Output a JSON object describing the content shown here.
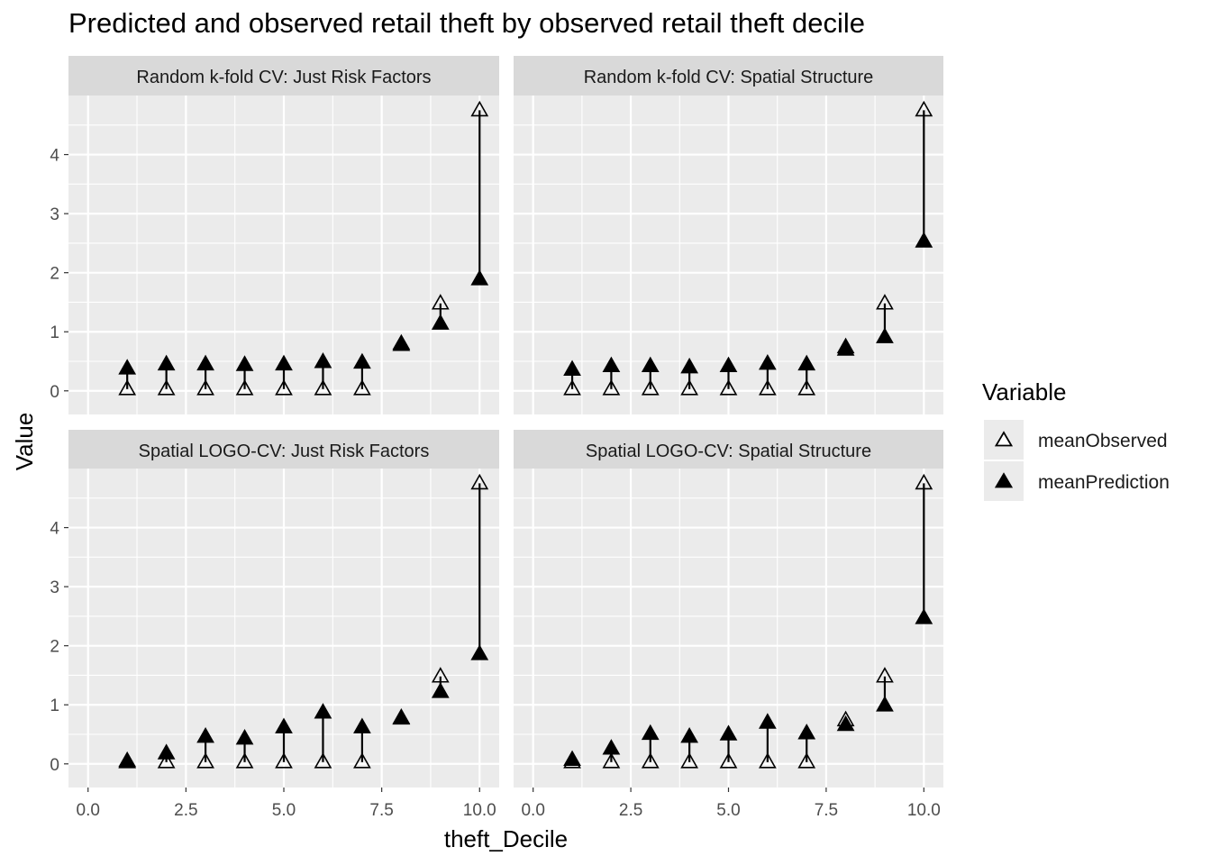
{
  "chart_data": {
    "type": "scatter",
    "title": "Predicted and observed retail theft by observed retail theft decile",
    "xlabel": "theft_Decile",
    "ylabel": "Value",
    "xlim": [
      -0.5,
      10.5
    ],
    "ylim": [
      -0.4,
      5.0
    ],
    "xticks": [
      0,
      2.5,
      5,
      7.5,
      10
    ],
    "xtick_labels": [
      "0.0",
      "2.5",
      "5.0",
      "7.5",
      "10.0"
    ],
    "yticks": [
      0,
      1,
      2,
      3,
      4
    ],
    "ytick_labels": [
      "0",
      "1",
      "2",
      "3",
      "4"
    ],
    "grid": true,
    "legend": {
      "title": "Variable",
      "position": "right",
      "entries": [
        "meanObserved",
        "meanPrediction"
      ]
    },
    "panels": [
      {
        "title": "Random k-fold CV: Just Risk Factors",
        "x": [
          1,
          2,
          3,
          4,
          5,
          6,
          7,
          8,
          9,
          10
        ],
        "series": [
          {
            "name": "meanObserved",
            "values": [
              0.03,
              0.03,
              0.03,
              0.03,
              0.03,
              0.03,
              0.03,
              0.78,
              1.48,
              4.75
            ]
          },
          {
            "name": "meanPrediction",
            "values": [
              0.38,
              0.45,
              0.45,
              0.44,
              0.45,
              0.49,
              0.48,
              0.8,
              1.14,
              1.89
            ]
          }
        ]
      },
      {
        "title": "Random k-fold CV: Spatial Structure",
        "x": [
          1,
          2,
          3,
          4,
          5,
          6,
          7,
          8,
          9,
          10
        ],
        "series": [
          {
            "name": "meanObserved",
            "values": [
              0.03,
              0.03,
              0.03,
              0.03,
              0.03,
              0.03,
              0.03,
              0.74,
              1.48,
              4.75
            ]
          },
          {
            "name": "meanPrediction",
            "values": [
              0.36,
              0.42,
              0.42,
              0.4,
              0.42,
              0.46,
              0.45,
              0.7,
              0.91,
              2.53
            ]
          }
        ]
      },
      {
        "title": "Spatial LOGO-CV: Just Risk Factors",
        "x": [
          1,
          2,
          3,
          4,
          5,
          6,
          7,
          8,
          9,
          10
        ],
        "series": [
          {
            "name": "meanObserved",
            "values": [
              0.03,
              0.03,
              0.03,
              0.03,
              0.03,
              0.03,
              0.03,
              0.78,
              1.48,
              4.75
            ]
          },
          {
            "name": "meanPrediction",
            "values": [
              0.05,
              0.18,
              0.46,
              0.43,
              0.62,
              0.87,
              0.62,
              0.77,
              1.22,
              1.86
            ]
          }
        ]
      },
      {
        "title": "Spatial LOGO-CV: Spatial Structure",
        "x": [
          1,
          2,
          3,
          4,
          5,
          6,
          7,
          8,
          9,
          10
        ],
        "series": [
          {
            "name": "meanObserved",
            "values": [
              0.03,
              0.03,
              0.03,
              0.03,
              0.03,
              0.03,
              0.03,
              0.74,
              1.48,
              4.75
            ]
          },
          {
            "name": "meanPrediction",
            "values": [
              0.07,
              0.26,
              0.51,
              0.46,
              0.5,
              0.7,
              0.52,
              0.66,
              0.99,
              2.47
            ]
          }
        ]
      }
    ]
  },
  "colors": {
    "panel_background": "#ebebeb",
    "strip_background": "#d9d9d9",
    "grid_line": "#ffffff",
    "marks": "#000000",
    "tick_text": "#4d4d4d"
  }
}
